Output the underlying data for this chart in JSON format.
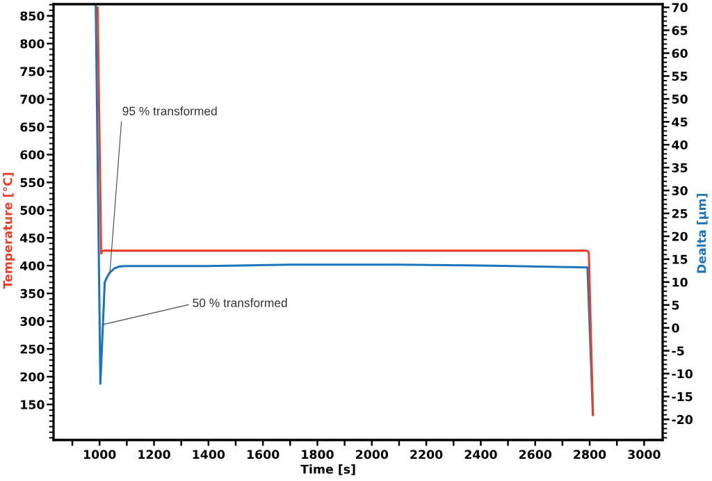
{
  "chart_data": {
    "type": "line",
    "xlabel": "Time [s]",
    "ylabel": "Temperature [°C]",
    "y2label": "Dealta [µm]",
    "xlim": [
      831,
      3068
    ],
    "xticks": [
      {
        "value": 900,
        "label": null
      },
      1000,
      {
        "value": 1100,
        "label": null
      },
      1200,
      {
        "value": 1300,
        "label": null
      },
      1400,
      {
        "value": 1500,
        "label": null
      },
      1600,
      {
        "value": 1700,
        "label": null
      },
      1800,
      {
        "value": 1900,
        "label": null
      },
      2000,
      {
        "value": 2100,
        "label": null
      },
      2200,
      {
        "value": 2300,
        "label": null
      },
      2400,
      {
        "value": 2500,
        "label": null
      },
      2600,
      {
        "value": 2700,
        "label": null
      },
      2800,
      {
        "value": 2900,
        "label": null
      },
      3000
    ],
    "ylim": [
      86,
      871
    ],
    "yticks": [
      {
        "value": 90,
        "label": null
      },
      {
        "value": 100,
        "label": null
      },
      {
        "value": 110,
        "label": null
      },
      {
        "value": 120,
        "label": null
      },
      {
        "value": 130,
        "label": null
      },
      {
        "value": 140,
        "label": null
      },
      150,
      {
        "value": 160,
        "label": null
      },
      {
        "value": 170,
        "label": null
      },
      {
        "value": 180,
        "label": null
      },
      {
        "value": 190,
        "label": null
      },
      200,
      {
        "value": 210,
        "label": null
      },
      {
        "value": 220,
        "label": null
      },
      {
        "value": 230,
        "label": null
      },
      {
        "value": 240,
        "label": null
      },
      250,
      {
        "value": 260,
        "label": null
      },
      {
        "value": 270,
        "label": null
      },
      {
        "value": 280,
        "label": null
      },
      {
        "value": 290,
        "label": null
      },
      300,
      {
        "value": 310,
        "label": null
      },
      {
        "value": 320,
        "label": null
      },
      {
        "value": 330,
        "label": null
      },
      {
        "value": 340,
        "label": null
      },
      350,
      {
        "value": 360,
        "label": null
      },
      {
        "value": 370,
        "label": null
      },
      {
        "value": 380,
        "label": null
      },
      {
        "value": 390,
        "label": null
      },
      400,
      {
        "value": 410,
        "label": null
      },
      {
        "value": 420,
        "label": null
      },
      {
        "value": 430,
        "label": null
      },
      {
        "value": 440,
        "label": null
      },
      450,
      {
        "value": 460,
        "label": null
      },
      {
        "value": 470,
        "label": null
      },
      {
        "value": 480,
        "label": null
      },
      {
        "value": 490,
        "label": null
      },
      500,
      {
        "value": 510,
        "label": null
      },
      {
        "value": 520,
        "label": null
      },
      {
        "value": 530,
        "label": null
      },
      {
        "value": 540,
        "label": null
      },
      550,
      {
        "value": 560,
        "label": null
      },
      {
        "value": 570,
        "label": null
      },
      {
        "value": 580,
        "label": null
      },
      {
        "value": 590,
        "label": null
      },
      600,
      {
        "value": 610,
        "label": null
      },
      {
        "value": 620,
        "label": null
      },
      {
        "value": 630,
        "label": null
      },
      {
        "value": 640,
        "label": null
      },
      650,
      {
        "value": 660,
        "label": null
      },
      {
        "value": 670,
        "label": null
      },
      {
        "value": 680,
        "label": null
      },
      {
        "value": 690,
        "label": null
      },
      700,
      {
        "value": 710,
        "label": null
      },
      {
        "value": 720,
        "label": null
      },
      {
        "value": 730,
        "label": null
      },
      {
        "value": 740,
        "label": null
      },
      750,
      {
        "value": 760,
        "label": null
      },
      {
        "value": 770,
        "label": null
      },
      {
        "value": 780,
        "label": null
      },
      {
        "value": 790,
        "label": null
      },
      800,
      {
        "value": 810,
        "label": null
      },
      {
        "value": 820,
        "label": null
      },
      {
        "value": 830,
        "label": null
      },
      {
        "value": 840,
        "label": null
      },
      850,
      {
        "value": 860,
        "label": null
      },
      {
        "value": 870,
        "label": null
      }
    ],
    "y2lim": [
      -24.5,
      70.7
    ],
    "y2ticks": [
      {
        "value": -24,
        "label": null
      },
      {
        "value": -23,
        "label": null
      },
      {
        "value": -22,
        "label": null
      },
      {
        "value": -21,
        "label": null
      },
      -20,
      {
        "value": -19,
        "label": null
      },
      {
        "value": -18,
        "label": null
      },
      {
        "value": -17,
        "label": null
      },
      {
        "value": -16,
        "label": null
      },
      -15,
      {
        "value": -14,
        "label": null
      },
      {
        "value": -13,
        "label": null
      },
      {
        "value": -12,
        "label": null
      },
      {
        "value": -11,
        "label": null
      },
      -10,
      {
        "value": -9,
        "label": null
      },
      {
        "value": -8,
        "label": null
      },
      {
        "value": -7,
        "label": null
      },
      {
        "value": -6,
        "label": null
      },
      -5,
      {
        "value": -4,
        "label": null
      },
      {
        "value": -3,
        "label": null
      },
      {
        "value": -2,
        "label": null
      },
      {
        "value": -1,
        "label": null
      },
      0,
      {
        "value": 1,
        "label": null
      },
      {
        "value": 2,
        "label": null
      },
      {
        "value": 3,
        "label": null
      },
      {
        "value": 4,
        "label": null
      },
      5,
      {
        "value": 6,
        "label": null
      },
      {
        "value": 7,
        "label": null
      },
      {
        "value": 8,
        "label": null
      },
      {
        "value": 9,
        "label": null
      },
      10,
      {
        "value": 11,
        "label": null
      },
      {
        "value": 12,
        "label": null
      },
      {
        "value": 13,
        "label": null
      },
      {
        "value": 14,
        "label": null
      },
      15,
      {
        "value": 16,
        "label": null
      },
      {
        "value": 17,
        "label": null
      },
      {
        "value": 18,
        "label": null
      },
      {
        "value": 19,
        "label": null
      },
      20,
      {
        "value": 21,
        "label": null
      },
      {
        "value": 22,
        "label": null
      },
      {
        "value": 23,
        "label": null
      },
      {
        "value": 24,
        "label": null
      },
      25,
      {
        "value": 26,
        "label": null
      },
      {
        "value": 27,
        "label": null
      },
      {
        "value": 28,
        "label": null
      },
      {
        "value": 29,
        "label": null
      },
      30,
      {
        "value": 31,
        "label": null
      },
      {
        "value": 32,
        "label": null
      },
      {
        "value": 33,
        "label": null
      },
      {
        "value": 34,
        "label": null
      },
      35,
      {
        "value": 36,
        "label": null
      },
      {
        "value": 37,
        "label": null
      },
      {
        "value": 38,
        "label": null
      },
      {
        "value": 39,
        "label": null
      },
      40,
      {
        "value": 41,
        "label": null
      },
      {
        "value": 42,
        "label": null
      },
      {
        "value": 43,
        "label": null
      },
      {
        "value": 44,
        "label": null
      },
      45,
      {
        "value": 46,
        "label": null
      },
      {
        "value": 47,
        "label": null
      },
      {
        "value": 48,
        "label": null
      },
      {
        "value": 49,
        "label": null
      },
      50,
      {
        "value": 51,
        "label": null
      },
      {
        "value": 52,
        "label": null
      },
      {
        "value": 53,
        "label": null
      },
      {
        "value": 54,
        "label": null
      },
      55,
      {
        "value": 56,
        "label": null
      },
      {
        "value": 57,
        "label": null
      },
      {
        "value": 58,
        "label": null
      },
      {
        "value": 59,
        "label": null
      },
      60,
      {
        "value": 61,
        "label": null
      },
      {
        "value": 62,
        "label": null
      },
      {
        "value": 63,
        "label": null
      },
      {
        "value": 64,
        "label": null
      },
      65,
      {
        "value": 66,
        "label": null
      },
      {
        "value": 67,
        "label": null
      },
      {
        "value": 68,
        "label": null
      },
      {
        "value": 69,
        "label": null
      },
      70
    ],
    "grid": false,
    "series": [
      {
        "color": "#1b75bc",
        "axis": "y2",
        "x": [
          986,
          1003,
          1019,
          1026,
          1038,
          1055,
          1073,
          1094,
          1400,
          1700,
          2100,
          2400,
          2792,
          2812
        ],
        "values": [
          70.5,
          -12.2,
          9.9,
          10.9,
          12.1,
          13.0,
          13.4,
          13.5,
          13.5,
          13.8,
          13.8,
          13.6,
          13.2,
          -19.0
        ]
      },
      {
        "color": "#e8402a",
        "x": [
          993,
          1006,
          1009,
          1014,
          2788,
          2794,
          2797,
          2812
        ],
        "values": [
          865,
          422,
          426,
          427,
          427,
          426,
          423,
          131
        ]
      }
    ],
    "annotations": [
      {
        "text": "95 % transformed",
        "x": 1038,
        "y": 388
      },
      {
        "text": "50 % transformed",
        "x": 1013,
        "y": 294
      }
    ]
  }
}
